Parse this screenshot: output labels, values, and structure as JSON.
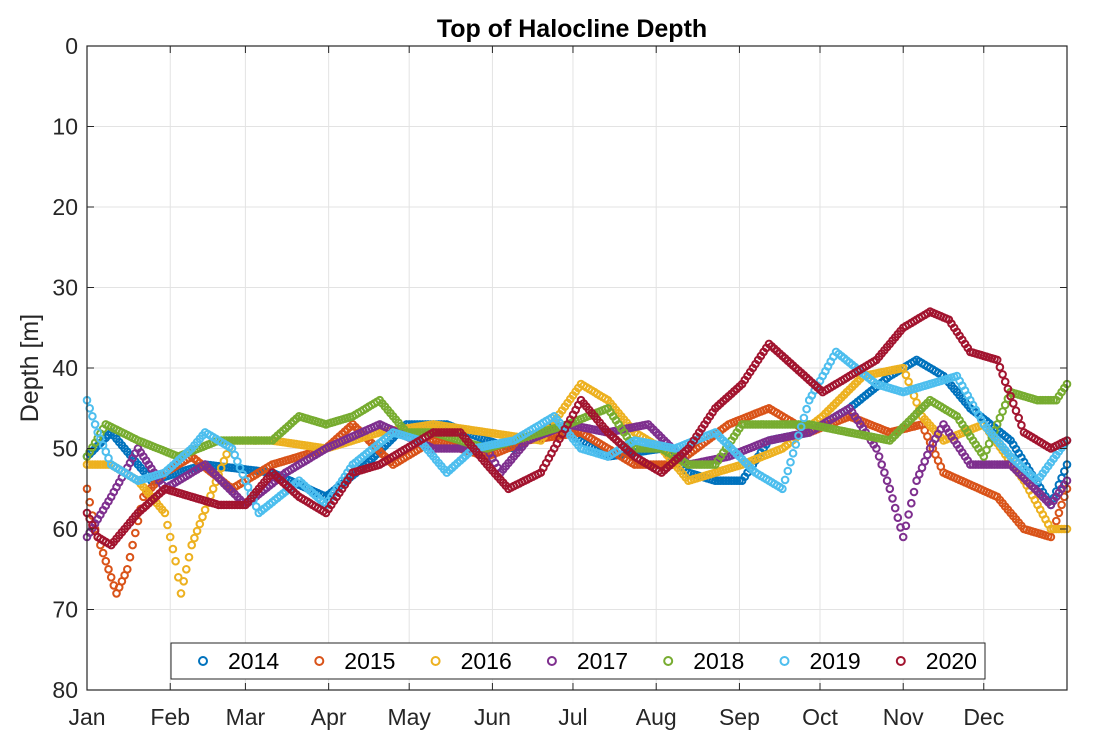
{
  "chart_data": {
    "type": "scatter",
    "title": "Top of Halocline Depth",
    "xlabel": "",
    "ylabel": "Depth [m]",
    "x_ticks": [
      "Jan",
      "Feb",
      "Mar",
      "Apr",
      "May",
      "Jun",
      "Jul",
      "Aug",
      "Sep",
      "Oct",
      "Nov",
      "Dec"
    ],
    "x_tick_days": [
      1,
      32,
      60,
      91,
      121,
      152,
      182,
      213,
      244,
      274,
      305,
      335
    ],
    "xlim": [
      1,
      366
    ],
    "ylim": [
      0,
      80
    ],
    "y_reversed": true,
    "y_ticks": [
      0,
      10,
      20,
      30,
      40,
      50,
      60,
      70,
      80
    ],
    "grid": true,
    "marker": "open-circle",
    "legend_position": "bottom-center",
    "legend_orientation": "horizontal",
    "x_unit": "day of year",
    "series": [
      {
        "name": "2014",
        "color": "#0072BD",
        "points": [
          [
            1,
            51
          ],
          [
            10,
            48
          ],
          [
            25,
            54
          ],
          [
            45,
            52
          ],
          [
            70,
            53
          ],
          [
            90,
            56
          ],
          [
            105,
            52
          ],
          [
            120,
            47
          ],
          [
            135,
            47
          ],
          [
            150,
            49
          ],
          [
            160,
            50
          ],
          [
            175,
            47
          ],
          [
            195,
            51
          ],
          [
            215,
            50
          ],
          [
            225,
            53
          ],
          [
            235,
            54
          ],
          [
            245,
            54
          ],
          [
            255,
            49
          ],
          [
            270,
            48
          ],
          [
            285,
            45
          ],
          [
            300,
            41
          ],
          [
            310,
            39
          ],
          [
            320,
            41
          ],
          [
            330,
            45
          ],
          [
            345,
            49
          ],
          [
            360,
            57
          ],
          [
            366,
            52
          ]
        ]
      },
      {
        "name": "2015",
        "color": "#D95319",
        "points": [
          [
            1,
            55
          ],
          [
            4,
            60
          ],
          [
            8,
            64
          ],
          [
            12,
            68
          ],
          [
            16,
            65
          ],
          [
            22,
            56
          ],
          [
            30,
            53
          ],
          [
            40,
            51
          ],
          [
            55,
            55
          ],
          [
            70,
            52
          ],
          [
            90,
            50
          ],
          [
            100,
            47
          ],
          [
            115,
            52
          ],
          [
            130,
            49
          ],
          [
            150,
            51
          ],
          [
            165,
            49
          ],
          [
            185,
            48
          ],
          [
            205,
            52
          ],
          [
            220,
            52
          ],
          [
            240,
            47
          ],
          [
            255,
            45
          ],
          [
            270,
            48
          ],
          [
            285,
            46
          ],
          [
            300,
            48
          ],
          [
            312,
            47
          ],
          [
            320,
            53
          ],
          [
            340,
            56
          ],
          [
            350,
            60
          ],
          [
            360,
            61
          ],
          [
            366,
            55
          ]
        ]
      },
      {
        "name": "2016",
        "color": "#EDB120",
        "points": [
          [
            1,
            52
          ],
          [
            10,
            52
          ],
          [
            20,
            54
          ],
          [
            30,
            58
          ],
          [
            34,
            64
          ],
          [
            36,
            68
          ],
          [
            40,
            62
          ],
          [
            48,
            55
          ],
          [
            55,
            49
          ],
          [
            70,
            49
          ],
          [
            90,
            50
          ],
          [
            110,
            48
          ],
          [
            130,
            47
          ],
          [
            150,
            48
          ],
          [
            170,
            49
          ],
          [
            185,
            42
          ],
          [
            195,
            44
          ],
          [
            205,
            48
          ],
          [
            215,
            50
          ],
          [
            225,
            54
          ],
          [
            235,
            53
          ],
          [
            245,
            52
          ],
          [
            260,
            50
          ],
          [
            275,
            46
          ],
          [
            290,
            41
          ],
          [
            305,
            40
          ],
          [
            312,
            46
          ],
          [
            320,
            49
          ],
          [
            335,
            47
          ],
          [
            350,
            54
          ],
          [
            360,
            60
          ],
          [
            366,
            60
          ]
        ]
      },
      {
        "name": "2017",
        "color": "#7E2F8E",
        "points": [
          [
            1,
            61
          ],
          [
            10,
            56
          ],
          [
            20,
            50
          ],
          [
            30,
            55
          ],
          [
            45,
            52
          ],
          [
            60,
            57
          ],
          [
            75,
            53
          ],
          [
            90,
            50
          ],
          [
            110,
            47
          ],
          [
            130,
            50
          ],
          [
            150,
            50
          ],
          [
            155,
            53
          ],
          [
            165,
            49
          ],
          [
            180,
            47
          ],
          [
            195,
            48
          ],
          [
            210,
            47
          ],
          [
            225,
            52
          ],
          [
            240,
            51
          ],
          [
            255,
            49
          ],
          [
            270,
            48
          ],
          [
            285,
            45
          ],
          [
            295,
            50
          ],
          [
            300,
            55
          ],
          [
            305,
            61
          ],
          [
            310,
            54
          ],
          [
            315,
            50
          ],
          [
            320,
            47
          ],
          [
            330,
            52
          ],
          [
            345,
            52
          ],
          [
            360,
            57
          ],
          [
            366,
            54
          ]
        ]
      },
      {
        "name": "2018",
        "color": "#77AC30",
        "points": [
          [
            1,
            51
          ],
          [
            8,
            47
          ],
          [
            20,
            49
          ],
          [
            35,
            51
          ],
          [
            50,
            49
          ],
          [
            70,
            49
          ],
          [
            80,
            46
          ],
          [
            90,
            47
          ],
          [
            100,
            46
          ],
          [
            110,
            44
          ],
          [
            120,
            48
          ],
          [
            130,
            48
          ],
          [
            150,
            50
          ],
          [
            170,
            48
          ],
          [
            180,
            47
          ],
          [
            195,
            45
          ],
          [
            205,
            50
          ],
          [
            215,
            50
          ],
          [
            225,
            52
          ],
          [
            235,
            52
          ],
          [
            245,
            47
          ],
          [
            255,
            47
          ],
          [
            270,
            47
          ],
          [
            285,
            48
          ],
          [
            300,
            49
          ],
          [
            315,
            44
          ],
          [
            325,
            46
          ],
          [
            335,
            51
          ],
          [
            345,
            43
          ],
          [
            355,
            44
          ],
          [
            362,
            44
          ],
          [
            366,
            42
          ]
        ]
      },
      {
        "name": "2019",
        "color": "#4DBEEE",
        "points": [
          [
            1,
            44
          ],
          [
            5,
            48
          ],
          [
            10,
            52
          ],
          [
            20,
            54
          ],
          [
            30,
            53
          ],
          [
            40,
            50
          ],
          [
            45,
            48
          ],
          [
            55,
            50
          ],
          [
            65,
            58
          ],
          [
            80,
            54
          ],
          [
            90,
            57
          ],
          [
            100,
            52
          ],
          [
            115,
            48
          ],
          [
            125,
            49
          ],
          [
            135,
            53
          ],
          [
            145,
            50
          ],
          [
            160,
            49
          ],
          [
            175,
            46
          ],
          [
            185,
            50
          ],
          [
            195,
            51
          ],
          [
            205,
            49
          ],
          [
            220,
            50
          ],
          [
            235,
            48
          ],
          [
            250,
            53
          ],
          [
            260,
            55
          ],
          [
            270,
            44
          ],
          [
            280,
            38
          ],
          [
            295,
            42
          ],
          [
            305,
            43
          ],
          [
            315,
            42
          ],
          [
            325,
            41
          ],
          [
            335,
            47
          ],
          [
            345,
            51
          ],
          [
            355,
            54
          ],
          [
            366,
            49
          ]
        ]
      },
      {
        "name": "2020",
        "color": "#A2142F",
        "points": [
          [
            1,
            58
          ],
          [
            5,
            61
          ],
          [
            10,
            62
          ],
          [
            20,
            58
          ],
          [
            30,
            55
          ],
          [
            40,
            56
          ],
          [
            50,
            57
          ],
          [
            60,
            57
          ],
          [
            70,
            53
          ],
          [
            80,
            56
          ],
          [
            90,
            58
          ],
          [
            100,
            53
          ],
          [
            110,
            52
          ],
          [
            120,
            50
          ],
          [
            130,
            48
          ],
          [
            140,
            48
          ],
          [
            150,
            52
          ],
          [
            158,
            55
          ],
          [
            170,
            53
          ],
          [
            180,
            47
          ],
          [
            185,
            44
          ],
          [
            195,
            48
          ],
          [
            205,
            51
          ],
          [
            215,
            53
          ],
          [
            225,
            50
          ],
          [
            235,
            45
          ],
          [
            245,
            42
          ],
          [
            255,
            37
          ],
          [
            265,
            40
          ],
          [
            275,
            43
          ],
          [
            285,
            41
          ],
          [
            295,
            39
          ],
          [
            305,
            35
          ],
          [
            315,
            33
          ],
          [
            322,
            34
          ],
          [
            330,
            38
          ],
          [
            340,
            39
          ],
          [
            350,
            48
          ],
          [
            360,
            50
          ],
          [
            366,
            49
          ]
        ]
      }
    ]
  }
}
